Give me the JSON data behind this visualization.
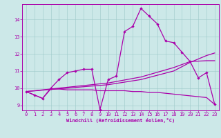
{
  "bg_color": "#cce8e8",
  "line_color": "#aa00aa",
  "xlim": [
    -0.5,
    23.5
  ],
  "ylim": [
    8.7,
    14.9
  ],
  "yticks": [
    9,
    10,
    11,
    12,
    13,
    14
  ],
  "xticks": [
    0,
    1,
    2,
    3,
    4,
    5,
    6,
    7,
    8,
    9,
    10,
    11,
    12,
    13,
    14,
    15,
    16,
    17,
    18,
    19,
    20,
    21,
    22,
    23
  ],
  "xlabel": "Windchill (Refroidissement éolien,°C)",
  "series_main": [
    [
      0,
      9.8
    ],
    [
      1,
      9.6
    ],
    [
      2,
      9.4
    ],
    [
      3,
      10.0
    ],
    [
      4,
      10.5
    ],
    [
      5,
      10.9
    ],
    [
      6,
      11.0
    ],
    [
      7,
      11.1
    ],
    [
      8,
      11.1
    ],
    [
      9,
      8.75
    ],
    [
      10,
      10.5
    ],
    [
      11,
      10.7
    ],
    [
      12,
      13.3
    ],
    [
      13,
      13.6
    ],
    [
      14,
      14.65
    ],
    [
      15,
      14.2
    ],
    [
      16,
      13.75
    ],
    [
      17,
      12.75
    ],
    [
      18,
      12.65
    ],
    [
      19,
      12.1
    ],
    [
      20,
      11.55
    ],
    [
      21,
      10.6
    ],
    [
      22,
      10.9
    ],
    [
      23,
      9.05
    ]
  ],
  "series_flat": [
    [
      0,
      9.8
    ],
    [
      1,
      9.6
    ],
    [
      2,
      9.4
    ],
    [
      3,
      9.95
    ],
    [
      4,
      9.95
    ],
    [
      5,
      9.9
    ],
    [
      6,
      9.9
    ],
    [
      7,
      9.9
    ],
    [
      8,
      9.9
    ],
    [
      9,
      9.85
    ],
    [
      10,
      9.85
    ],
    [
      11,
      9.85
    ],
    [
      12,
      9.85
    ],
    [
      13,
      9.8
    ],
    [
      14,
      9.8
    ],
    [
      15,
      9.75
    ],
    [
      16,
      9.75
    ],
    [
      17,
      9.7
    ],
    [
      18,
      9.65
    ],
    [
      19,
      9.6
    ],
    [
      20,
      9.55
    ],
    [
      21,
      9.5
    ],
    [
      22,
      9.45
    ],
    [
      23,
      9.05
    ]
  ],
  "series_trend1": [
    [
      0,
      9.8
    ],
    [
      5,
      10.0
    ],
    [
      10,
      10.2
    ],
    [
      14,
      10.5
    ],
    [
      18,
      11.0
    ],
    [
      20,
      11.5
    ],
    [
      22,
      11.9
    ],
    [
      23,
      12.05
    ]
  ],
  "series_trend2": [
    [
      0,
      9.8
    ],
    [
      5,
      10.05
    ],
    [
      10,
      10.3
    ],
    [
      14,
      10.65
    ],
    [
      18,
      11.2
    ],
    [
      20,
      11.55
    ],
    [
      22,
      11.6
    ],
    [
      23,
      11.6
    ]
  ]
}
